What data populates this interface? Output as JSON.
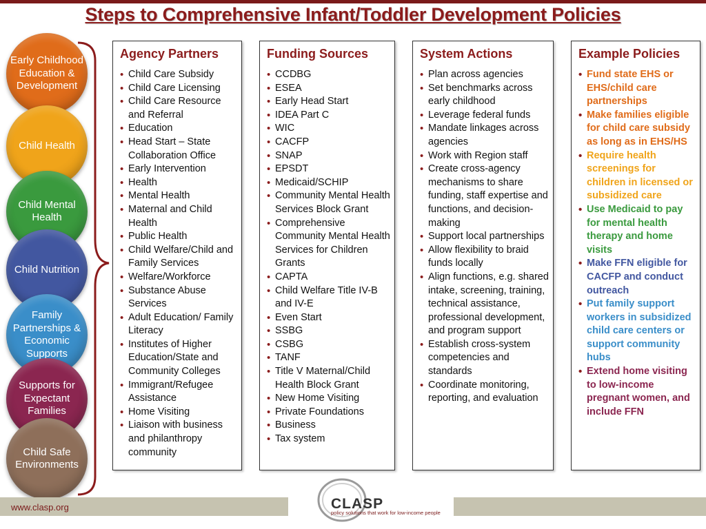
{
  "title": "Steps to Comprehensive Infant/Toddler Development Policies",
  "circles": [
    {
      "label": "Early Childhood Education & Development",
      "color": "#e06c1a"
    },
    {
      "label": "Child Health",
      "color": "#f0a41a"
    },
    {
      "label": "Child Mental Health",
      "color": "#3a9a3e"
    },
    {
      "label": "Child Nutrition",
      "color": "#4257a0"
    },
    {
      "label": "Family Partnerships & Economic Supports",
      "color": "#3a8ec9"
    },
    {
      "label": "Supports for Expectant Families",
      "color": "#8b2650"
    },
    {
      "label": "Child Safe Environments",
      "color": "#8e6f5a"
    }
  ],
  "columns": {
    "agency": {
      "header": "Agency Partners",
      "items": [
        "Child Care Subsidy",
        "Child Care Licensing",
        "Child Care Resource and Referral",
        "Education",
        "Head Start – State Collaboration Office",
        "Early Intervention",
        "Health",
        "Mental Health",
        "Maternal and Child Health",
        "Public Health",
        "Child Welfare/Child and Family Services",
        "Welfare/Workforce",
        "Substance Abuse Services",
        "Adult Education/ Family Literacy",
        "Institutes of Higher Education/State and Community Colleges",
        "Immigrant/Refugee Assistance",
        "Home Visiting",
        "Liaison with business and philanthropy community"
      ]
    },
    "funding": {
      "header": "Funding Sources",
      "items": [
        "CCDBG",
        "ESEA",
        "Early Head Start",
        "IDEA Part C",
        "WIC",
        "CACFP",
        "SNAP",
        "EPSDT",
        "Medicaid/SCHIP",
        "Community Mental Health Services Block Grant",
        "Comprehensive Community Mental Health Services for Children Grants",
        "CAPTA",
        "Child Welfare Title IV-B and IV-E",
        "Even Start",
        "SSBG",
        "CSBG",
        "TANF",
        "Title V Maternal/Child Health Block Grant",
        "New Home Visiting",
        "Private Foundations",
        "Business",
        "Tax system"
      ]
    },
    "actions": {
      "header": "System Actions",
      "items": [
        "Plan across agencies",
        "Set benchmarks across early childhood",
        "Leverage federal funds",
        "Mandate linkages across agencies",
        "Work with Region staff",
        "Create cross-agency mechanisms to share funding, staff expertise and functions, and decision-making",
        "Support local partnerships",
        "Allow flexibility to braid funds locally",
        "Align functions, e.g. shared intake, screening, training, technical assistance, professional development, and program support",
        "Establish cross-system competencies and standards",
        "Coordinate monitoring, reporting, and evaluation"
      ]
    },
    "policies": {
      "header": "Example Policies",
      "items": [
        {
          "text": "Fund state EHS or EHS/child care partnerships",
          "color": "#e06c1a"
        },
        {
          "text": "Make families eligible for child care subsidy as long as in EHS/HS",
          "color": "#e06c1a"
        },
        {
          "text": "Require health screenings for children in licensed or subsidized care",
          "color": "#f0a41a"
        },
        {
          "text": "Use Medicaid to pay for mental health therapy and home visits",
          "color": "#3a9a3e"
        },
        {
          "text": "Make FFN eligible for CACFP and conduct outreach",
          "color": "#4257a0"
        },
        {
          "text": "Put family support workers  in subsidized child care centers or support community hubs",
          "color": "#3a8ec9"
        },
        {
          "text": "Extend home visiting  to low-income pregnant women, and include FFN",
          "color": "#8b2650"
        }
      ]
    }
  },
  "footer": {
    "url": "www.clasp.org",
    "logo_word": "CLASP",
    "logo_tagline": "policy solutions that work for low-income people"
  }
}
